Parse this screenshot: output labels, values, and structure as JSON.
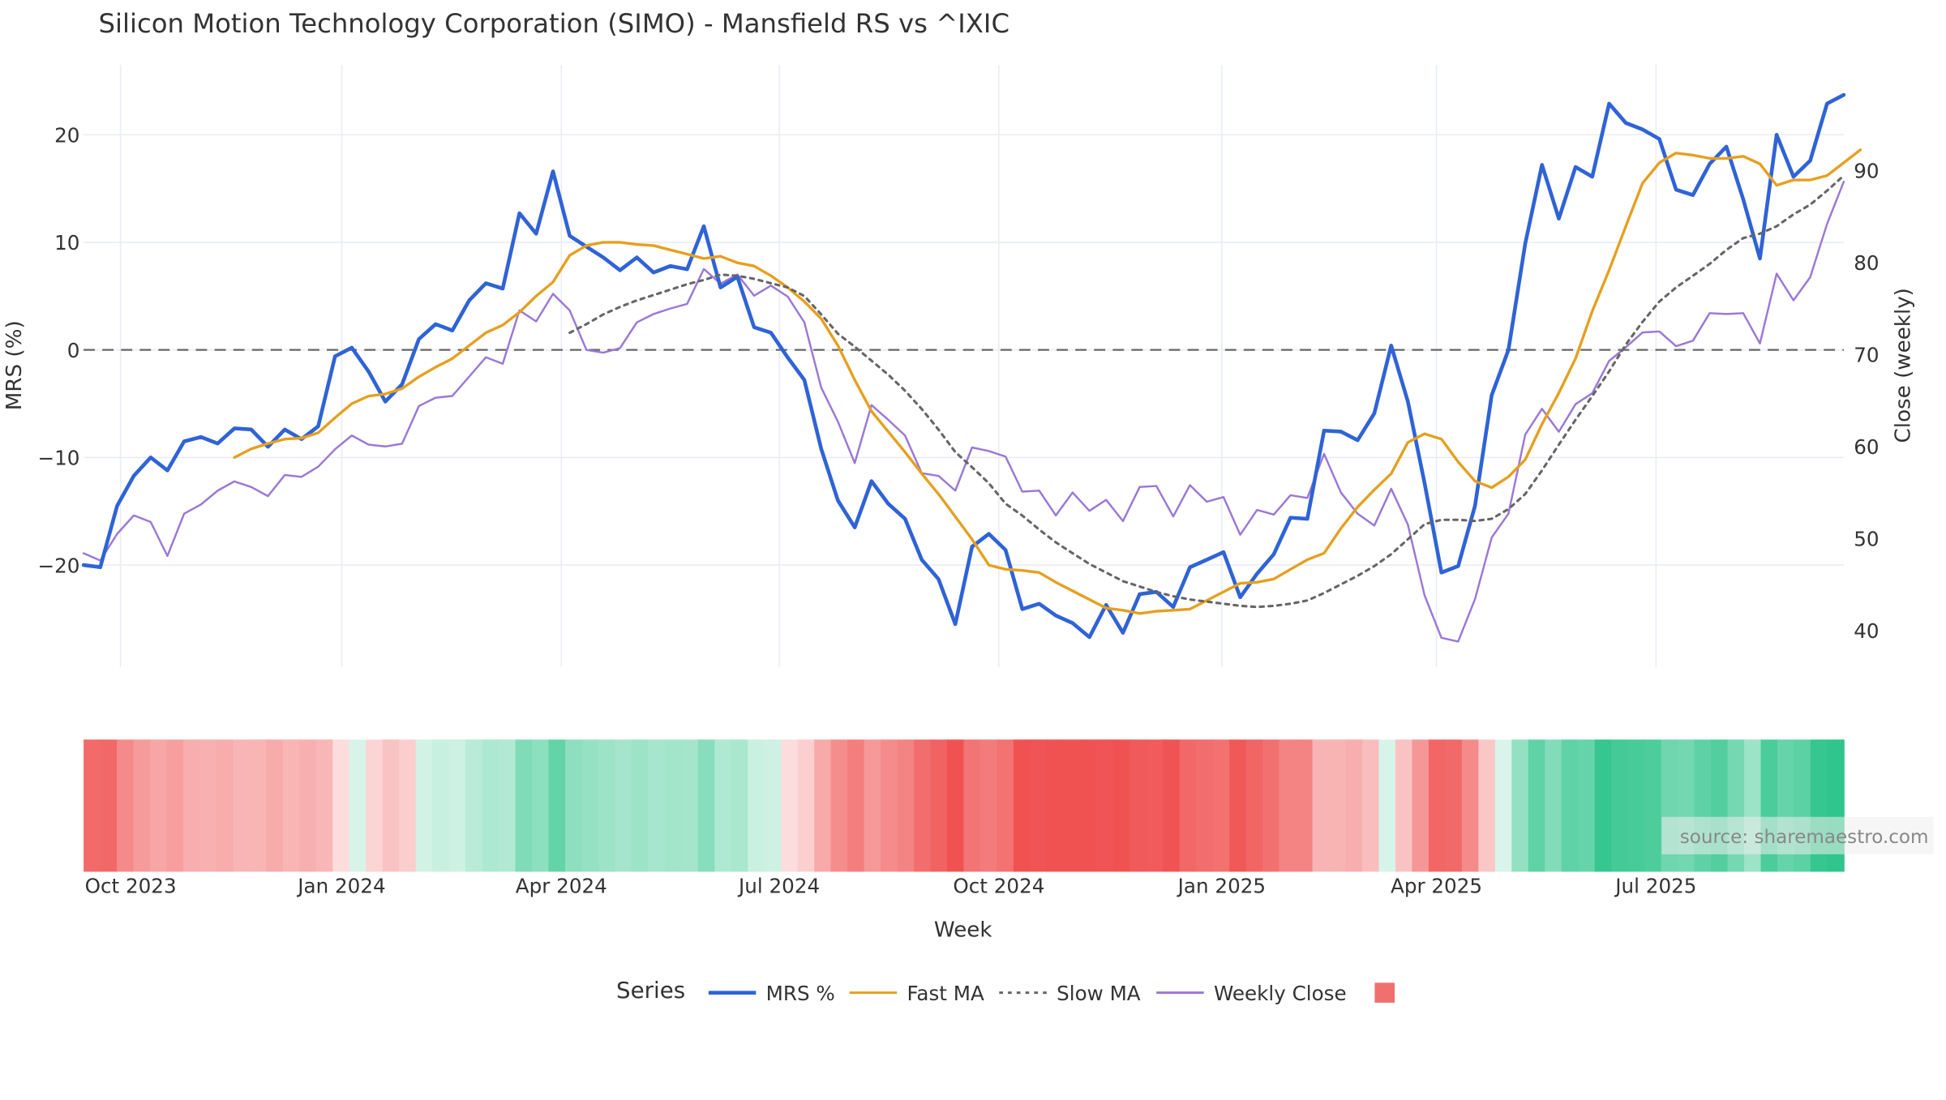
{
  "chart_data": {
    "type": "line",
    "title": "Silicon Motion Technology Corporation (SIMO) - Mansfield RS vs ^IXIC",
    "xlabel": "Week",
    "ylabel_left": "MRS (%)",
    "ylabel_right": "Close (weekly)",
    "ylim_left": [
      -29.5,
      26.5
    ],
    "ylim_right": [
      36,
      101.5
    ],
    "yticks_left": [
      {
        "v": 20,
        "label": "20"
      },
      {
        "v": 10,
        "label": "10"
      },
      {
        "v": 0,
        "label": "0"
      },
      {
        "v": -10,
        "label": "−10"
      },
      {
        "v": -20,
        "label": "−20"
      }
    ],
    "yticks_right": [
      {
        "v": 90,
        "label": "90"
      },
      {
        "v": 80,
        "label": "80"
      },
      {
        "v": 70,
        "label": "70"
      },
      {
        "v": 60,
        "label": "60"
      },
      {
        "v": 50,
        "label": "50"
      },
      {
        "v": 40,
        "label": "40"
      }
    ],
    "xticks": [
      {
        "i": 2.2,
        "label": "Oct 2023"
      },
      {
        "i": 15.4,
        "label": "Jan 2024"
      },
      {
        "i": 28.5,
        "label": "Apr 2024"
      },
      {
        "i": 41.5,
        "label": "Jul 2024"
      },
      {
        "i": 54.6,
        "label": "Oct 2024"
      },
      {
        "i": 67.9,
        "label": "Jan 2025"
      },
      {
        "i": 80.7,
        "label": "Apr 2025"
      },
      {
        "i": 93.8,
        "label": "Jul 2025"
      }
    ],
    "zero_line": 0,
    "grid": true,
    "legend_position": "bottom",
    "legend_title": "Series",
    "series": [
      {
        "name": "MRS %",
        "axis": "left",
        "color": "#2f63d6",
        "style": "solid",
        "values": [
          -20,
          -20.2,
          -14.5,
          -11.7,
          -10,
          -11.2,
          -8.5,
          -8.1,
          -8.7,
          -7.3,
          -7.4,
          -9,
          -7.4,
          -8.3,
          -7.1,
          -0.6,
          0.2,
          -2,
          -4.8,
          -3.2,
          1,
          2.4,
          1.8,
          4.6,
          6.2,
          5.7,
          12.7,
          10.8,
          16.6,
          10.6,
          9.6,
          8.6,
          7.4,
          8.6,
          7.2,
          7.8,
          7.5,
          11.5,
          5.8,
          6.8,
          2.1,
          1.6,
          -0.7,
          -2.8,
          -9.2,
          -14,
          -16.5,
          -12.2,
          -14.3,
          -15.7,
          -19.5,
          -21.3,
          -25.5,
          -18.3,
          -17.1,
          -18.6,
          -24.1,
          -23.6,
          -24.7,
          -25.4,
          -26.7,
          -23.7,
          -26.3,
          -22.7,
          -22.5,
          -23.9,
          -20.2,
          -19.5,
          -18.8,
          -23,
          -20.8,
          -19,
          -15.6,
          -15.7,
          -7.5,
          -7.6,
          -8.4,
          -5.9,
          0.4,
          -4.8,
          -12.4,
          -20.7,
          -20.1,
          -14.5,
          -4.2,
          0,
          9.9,
          17.2,
          12.2,
          17,
          16.1,
          22.9,
          21.1,
          20.5,
          19.6,
          14.9,
          14.4,
          17.3,
          18.9,
          14,
          8.5,
          20,
          16.1,
          17.6,
          22.9,
          23.7
        ]
      },
      {
        "name": "Fast MA",
        "axis": "left",
        "color": "#e5a020",
        "style": "solid",
        "values": [
          null,
          null,
          null,
          null,
          null,
          null,
          null,
          null,
          null,
          -10,
          -9.2,
          -8.7,
          -8.3,
          -8.2,
          -7.7,
          -6.3,
          -5,
          -4.3,
          -4.1,
          -3.6,
          -2.5,
          -1.6,
          -0.8,
          0.4,
          1.6,
          2.3,
          3.5,
          5,
          6.3,
          8.8,
          9.7,
          10,
          10,
          9.8,
          9.7,
          9.3,
          8.9,
          8.5,
          8.7,
          8.1,
          7.8,
          6.9,
          5.8,
          4.5,
          2.9,
          0.4,
          -2.8,
          -5.7,
          -7.6,
          -9.5,
          -11.5,
          -13.4,
          -15.5,
          -17.6,
          -20,
          -20.4,
          -20.5,
          -20.7,
          -21.6,
          -22.4,
          -23.2,
          -24,
          -24.2,
          -24.5,
          -24.3,
          -24.2,
          -24.1,
          -23.3,
          -22.5,
          -21.7,
          -21.6,
          -21.3,
          -20.4,
          -19.5,
          -18.9,
          -16.6,
          -14.6,
          -13,
          -11.5,
          -8.6,
          -7.8,
          -8.3,
          -10.4,
          -12.2,
          -12.8,
          -11.8,
          -10.2,
          -6.9,
          -4,
          -0.8,
          3.6,
          7.4,
          11.5,
          15.5,
          17.4,
          18.3,
          18.1,
          17.8,
          17.8,
          18,
          17.3,
          15.3,
          15.8,
          15.8,
          16.2,
          17.4,
          18.6
        ]
      },
      {
        "name": "Slow MA",
        "axis": "left",
        "color": "#666666",
        "style": "dotted",
        "values": [
          null,
          null,
          null,
          null,
          null,
          null,
          null,
          null,
          null,
          null,
          null,
          null,
          null,
          null,
          null,
          null,
          null,
          null,
          null,
          null,
          null,
          null,
          null,
          null,
          null,
          null,
          null,
          null,
          null,
          1.6,
          2.4,
          3.3,
          4,
          4.6,
          5.1,
          5.6,
          6.1,
          6.5,
          7,
          6.9,
          6.6,
          6.2,
          5.8,
          5,
          3.3,
          1.5,
          0.3,
          -1,
          -2.3,
          -3.8,
          -5.5,
          -7.4,
          -9.5,
          -10.9,
          -12.4,
          -14.3,
          -15.4,
          -16.7,
          -17.9,
          -18.9,
          -19.9,
          -20.7,
          -21.5,
          -22,
          -22.5,
          -22.9,
          -23.2,
          -23.4,
          -23.6,
          -23.8,
          -23.9,
          -23.8,
          -23.6,
          -23.3,
          -22.6,
          -21.8,
          -21,
          -20.1,
          -19,
          -17.6,
          -16.2,
          -15.8,
          -15.8,
          -15.9,
          -15.7,
          -14.8,
          -13.4,
          -11.2,
          -8.8,
          -6.5,
          -4.3,
          -2,
          0.5,
          2.6,
          4.5,
          5.8,
          6.9,
          8,
          9.3,
          10.4,
          10.8,
          11.5,
          12.6,
          13.5,
          14.8,
          16.2
        ]
      },
      {
        "name": "Weekly Close",
        "axis": "right",
        "color": "#9b78d6",
        "style": "solid",
        "values": [
          48.4,
          47.6,
          50.5,
          52.5,
          51.8,
          48.1,
          52.7,
          53.7,
          55.2,
          56.2,
          55.6,
          54.6,
          56.9,
          56.7,
          57.8,
          59.7,
          61.2,
          60.2,
          60,
          60.3,
          64.4,
          65.3,
          65.5,
          67.6,
          69.7,
          69,
          74.8,
          73.6,
          76.6,
          74.8,
          70.5,
          70.2,
          70.7,
          73.5,
          74.4,
          75,
          75.5,
          79.3,
          77.7,
          78.7,
          76.4,
          77.5,
          76.3,
          73.5,
          66.4,
          62.7,
          58.2,
          64.5,
          62.9,
          61.2,
          57.1,
          56.8,
          55.2,
          59.9,
          59.5,
          58.9,
          55.1,
          55.2,
          52.5,
          55,
          53,
          54.2,
          51.9,
          55.6,
          55.7,
          52.4,
          55.8,
          54,
          54.5,
          50.4,
          53.1,
          52.6,
          54.7,
          54.4,
          59.2,
          55,
          52.7,
          51.4,
          55.4,
          51.5,
          43.8,
          39.2,
          38.8,
          43.4,
          50.1,
          52.7,
          61.3,
          64.1,
          61.6,
          64.6,
          65.8,
          69.3,
          70.8,
          72.4,
          72.5,
          70.9,
          71.5,
          74.5,
          74.4,
          74.5,
          71.2,
          78.8,
          75.9,
          78.4,
          84.2,
          88.8
        ]
      }
    ],
    "heatmap_strip": {
      "description": "weekly MRS colour band",
      "values": [
        -20,
        -20.2,
        -14.5,
        -11.7,
        -10,
        -11.2,
        -8.5,
        -8.1,
        -8.7,
        -7.3,
        -7.4,
        -9,
        -7.4,
        -8.3,
        -7.1,
        -0.6,
        0.2,
        -2,
        -4.8,
        -3.2,
        1,
        2.4,
        1.8,
        4.6,
        6.2,
        5.7,
        12.7,
        10.8,
        16.6,
        10.6,
        9.6,
        8.6,
        7.4,
        8.6,
        7.2,
        7.8,
        7.5,
        11.5,
        5.8,
        6.8,
        2.1,
        1.6,
        -0.7,
        -2.8,
        -9.2,
        -14,
        -16.5,
        -12.2,
        -14.3,
        -15.7,
        -19.5,
        -21.3,
        -25.5,
        -18.3,
        -17.1,
        -18.6,
        -24.1,
        -23.6,
        -24.7,
        -25.4,
        -26.7,
        -23.7,
        -26.3,
        -22.7,
        -22.5,
        -23.9,
        -20.2,
        -19.5,
        -18.8,
        -23,
        -20.8,
        -19,
        -15.6,
        -15.7,
        -7.5,
        -7.6,
        -8.4,
        -5.9,
        0.4,
        -4.8,
        -12.4,
        -20.7,
        -20.1,
        -14.5,
        -4.2,
        0,
        9.9,
        17.2,
        12.2,
        17,
        16.1,
        22.9,
        21.1,
        20.5,
        19.6,
        14.9,
        14.4,
        17.3,
        18.9,
        14,
        8.5,
        20,
        16.1,
        17.6,
        22.9,
        23.7
      ],
      "negative_color": "#f05252",
      "positive_color": "#2ec48b"
    },
    "legend_swatch_color": "#f07070",
    "watermark": "source: sharemaestro.com"
  }
}
